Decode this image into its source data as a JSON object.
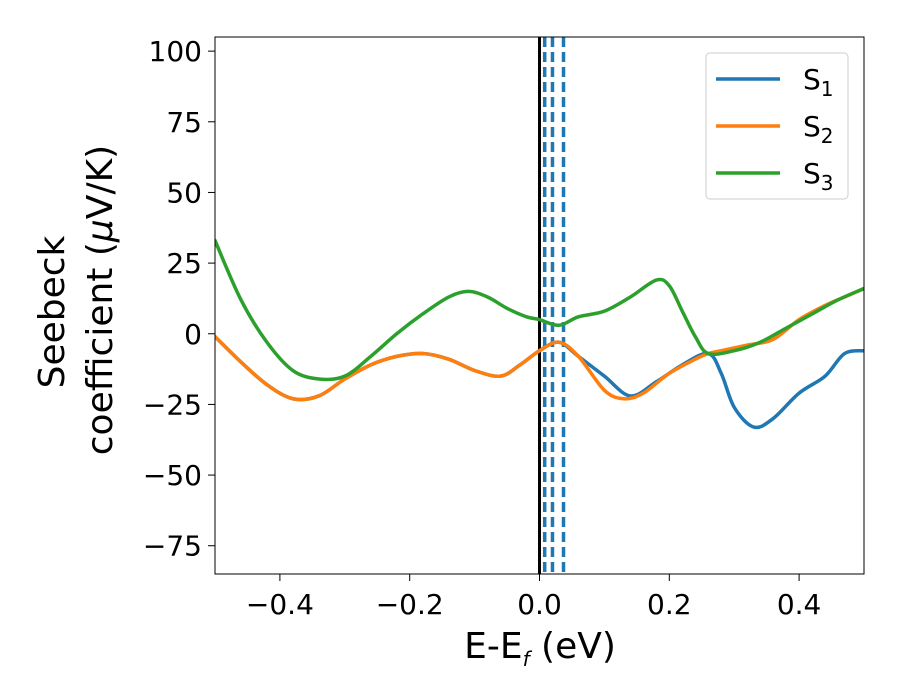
{
  "chart_data": {
    "type": "line",
    "xlabel": {
      "main": "E-E",
      "sub": "f",
      "rest": " (eV)"
    },
    "ylabel": {
      "line1": "Seebeck",
      "line2": "coefficient  (",
      "mu": "μ",
      "rest": "V/K)"
    },
    "xlim": [
      -0.5,
      0.5
    ],
    "ylim": [
      -85,
      105
    ],
    "xticks": [
      -0.4,
      -0.2,
      0.0,
      0.2,
      0.4
    ],
    "xtick_labels": [
      "−0.4",
      "−0.2",
      "0.0",
      "0.2",
      "0.4"
    ],
    "yticks": [
      -75,
      -50,
      -25,
      0,
      25,
      50,
      75,
      100
    ],
    "ytick_labels": [
      "−75",
      "−50",
      "−25",
      "0",
      "25",
      "50",
      "75",
      "100"
    ],
    "grid": false,
    "legend_position": "top-right",
    "colors": {
      "s1": "#1f77b4",
      "s2": "#ff7f0e",
      "s3": "#2ca02c",
      "fermi": "#000000"
    },
    "vertical_lines": [
      {
        "x": 0.0,
        "style": "solid",
        "color": "#000000"
      },
      {
        "x": 0.008,
        "style": "dashed",
        "color": "#1f77b4"
      },
      {
        "x": 0.02,
        "style": "dashed",
        "color": "#1f77b4"
      },
      {
        "x": 0.037,
        "style": "dashed",
        "color": "#1f77b4"
      }
    ],
    "series": [
      {
        "name": "S",
        "sub": "1",
        "color": "#1f77b4",
        "x": [
          -0.5,
          -0.46,
          -0.42,
          -0.38,
          -0.34,
          -0.3,
          -0.26,
          -0.22,
          -0.18,
          -0.14,
          -0.1,
          -0.06,
          -0.03,
          0.0,
          0.03,
          0.06,
          0.1,
          0.14,
          0.18,
          0.22,
          0.26,
          0.28,
          0.3,
          0.33,
          0.36,
          0.4,
          0.44,
          0.47,
          0.5
        ],
        "y": [
          -1,
          -10,
          -18,
          -23,
          -22,
          -16,
          -11,
          -8,
          -7,
          -9,
          -13,
          -15,
          -11,
          -6,
          -3,
          -8,
          -15,
          -22,
          -17,
          -11,
          -7,
          -14,
          -26,
          -33,
          -30,
          -21,
          -15,
          -7,
          -6
        ]
      },
      {
        "name": "S",
        "sub": "2",
        "color": "#ff7f0e",
        "x": [
          -0.5,
          -0.46,
          -0.42,
          -0.38,
          -0.34,
          -0.3,
          -0.26,
          -0.22,
          -0.18,
          -0.14,
          -0.1,
          -0.06,
          -0.03,
          0.0,
          0.03,
          0.06,
          0.1,
          0.13,
          0.16,
          0.2,
          0.24,
          0.26,
          0.28,
          0.32,
          0.36,
          0.4,
          0.44,
          0.47,
          0.5
        ],
        "y": [
          -1,
          -10,
          -18,
          -23,
          -22,
          -16,
          -11,
          -8,
          -7,
          -9,
          -13,
          -15,
          -11,
          -6,
          -3,
          -8,
          -20,
          -23,
          -21,
          -14,
          -9,
          -7,
          -6,
          -4,
          -2,
          5,
          10,
          13,
          16
        ]
      },
      {
        "name": "S",
        "sub": "3",
        "color": "#2ca02c",
        "x": [
          -0.5,
          -0.46,
          -0.42,
          -0.38,
          -0.34,
          -0.3,
          -0.26,
          -0.22,
          -0.18,
          -0.14,
          -0.11,
          -0.08,
          -0.05,
          -0.02,
          0.0,
          0.03,
          0.06,
          0.1,
          0.14,
          0.18,
          0.2,
          0.22,
          0.24,
          0.26,
          0.3,
          0.34,
          0.38,
          0.42,
          0.46,
          0.5
        ],
        "y": [
          33,
          12,
          -3,
          -13,
          -16,
          -15,
          -8,
          0,
          7,
          13,
          15,
          13,
          9,
          6,
          5,
          3,
          6,
          8,
          13,
          19,
          17,
          8,
          -1,
          -7,
          -6,
          -3,
          2,
          7,
          12,
          16
        ]
      }
    ]
  }
}
